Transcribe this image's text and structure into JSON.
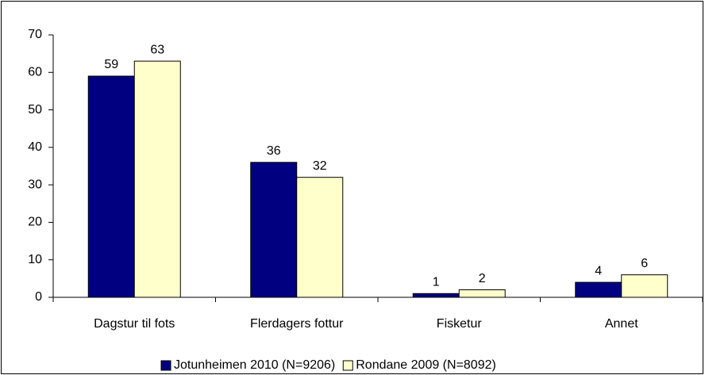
{
  "chart_data": {
    "type": "bar",
    "categories": [
      "Dagstur til fots",
      "Flerdagers fottur",
      "Fisketur",
      "Annet"
    ],
    "series": [
      {
        "name": "Jotunheimen 2010 (N=9206)",
        "color": "#000080",
        "values": [
          59,
          36,
          1,
          4
        ]
      },
      {
        "name": "Rondane 2009 (N=8092)",
        "color": "#ffffcc",
        "values": [
          63,
          32,
          2,
          6
        ]
      }
    ],
    "ylim": [
      0,
      70
    ],
    "yticks": [
      0,
      10,
      20,
      30,
      40,
      50,
      60,
      70
    ],
    "grid": false,
    "legend": "bottom"
  }
}
